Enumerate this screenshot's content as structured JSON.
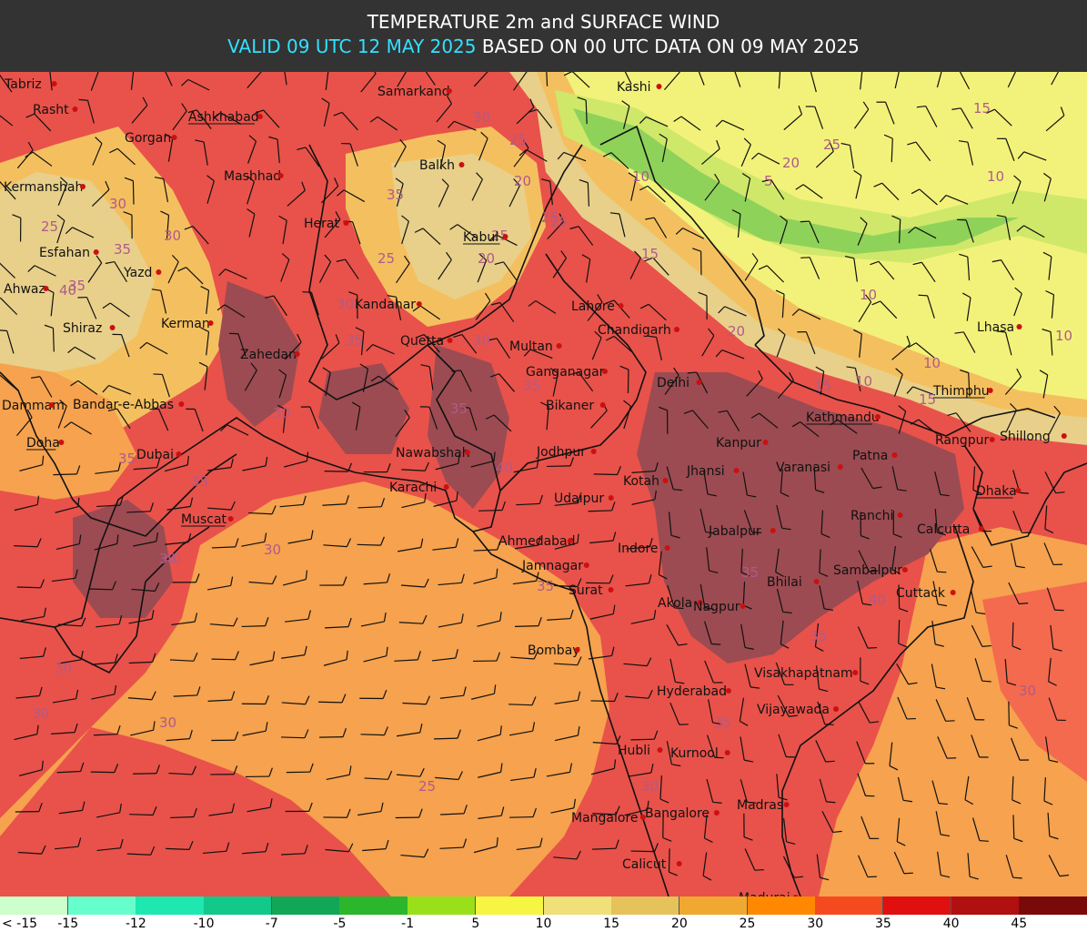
{
  "header": {
    "title": "TEMPERATURE 2m and SURFACE WIND",
    "valid_text": "VALID 09 UTC 12 MAY 2025",
    "based_text": "BASED ON 00 UTC DATA ON 09 MAY 2025"
  },
  "colors": {
    "hot_dark": "#9c4b52",
    "hot": "#e8524a",
    "warm": "#f46a4e",
    "orange": "#f6a24e",
    "light_orange": "#f4c05f",
    "tan": "#e8d08a",
    "yellow": "#f2f27a",
    "green_light": "#cfe86a",
    "green": "#8fd25a",
    "accent_header": "#33e0ff"
  },
  "cities": [
    {
      "name": "Tabriz",
      "underline": false
    },
    {
      "name": "Rasht",
      "underline": false
    },
    {
      "name": "Ashkhabad",
      "underline": true
    },
    {
      "name": "Samarkand",
      "underline": false
    },
    {
      "name": "Kashi",
      "underline": false
    },
    {
      "name": "Gorgan",
      "underline": false
    },
    {
      "name": "Mashhad",
      "underline": false
    },
    {
      "name": "Balkh",
      "underline": false
    },
    {
      "name": "Kermanshah",
      "underline": false
    },
    {
      "name": "Herat",
      "underline": false
    },
    {
      "name": "Kabul",
      "underline": true
    },
    {
      "name": "Esfahan",
      "underline": false
    },
    {
      "name": "Yazd",
      "underline": false
    },
    {
      "name": "Ahwaz",
      "underline": false
    },
    {
      "name": "Kandahar",
      "underline": false
    },
    {
      "name": "Lahore",
      "underline": false
    },
    {
      "name": "Kerman",
      "underline": false
    },
    {
      "name": "Shiraz",
      "underline": false
    },
    {
      "name": "Chandigarh",
      "underline": false
    },
    {
      "name": "Lhasa",
      "underline": false
    },
    {
      "name": "Zahedan",
      "underline": false
    },
    {
      "name": "Quetta",
      "underline": false
    },
    {
      "name": "Multan",
      "underline": false
    },
    {
      "name": "Ganganagar",
      "underline": false
    },
    {
      "name": "Delhi",
      "underline": false
    },
    {
      "name": "Thimphu",
      "underline": true
    },
    {
      "name": "Dammam",
      "underline": false
    },
    {
      "name": "Bandar-e-Abbas",
      "underline": false
    },
    {
      "name": "Bikaner",
      "underline": false
    },
    {
      "name": "Kathmandu",
      "underline": true
    },
    {
      "name": "Doha",
      "underline": true
    },
    {
      "name": "Shillong",
      "underline": false
    },
    {
      "name": "Kanpur",
      "underline": false
    },
    {
      "name": "Rangpur",
      "underline": false
    },
    {
      "name": "Dubai",
      "underline": false
    },
    {
      "name": "Nawabshah",
      "underline": false
    },
    {
      "name": "Jodhpur",
      "underline": false
    },
    {
      "name": "Patna",
      "underline": false
    },
    {
      "name": "Varanasi",
      "underline": false
    },
    {
      "name": "Jhansi",
      "underline": false
    },
    {
      "name": "Kotah",
      "underline": false
    },
    {
      "name": "Karachi",
      "underline": false
    },
    {
      "name": "Dhaka",
      "underline": true
    },
    {
      "name": "Udaipur",
      "underline": false
    },
    {
      "name": "Muscat",
      "underline": true
    },
    {
      "name": "Ranchi",
      "underline": false
    },
    {
      "name": "Calcutta",
      "underline": false
    },
    {
      "name": "Jabalpur",
      "underline": false
    },
    {
      "name": "Ahmedabad",
      "underline": false
    },
    {
      "name": "Indore",
      "underline": false
    },
    {
      "name": "Jamnagar",
      "underline": false
    },
    {
      "name": "Sambalpur",
      "underline": false
    },
    {
      "name": "Bhilai",
      "underline": false
    },
    {
      "name": "Surat",
      "underline": false
    },
    {
      "name": "Cuttack",
      "underline": false
    },
    {
      "name": "Akola",
      "underline": false
    },
    {
      "name": "Nagpur",
      "underline": false
    },
    {
      "name": "Bombay",
      "underline": false
    },
    {
      "name": "Visakhapatnam",
      "underline": false
    },
    {
      "name": "Hyderabad",
      "underline": false
    },
    {
      "name": "Vijayawada",
      "underline": false
    },
    {
      "name": "Hubli",
      "underline": false
    },
    {
      "name": "Kurnool",
      "underline": false
    },
    {
      "name": "Madras",
      "underline": false
    },
    {
      "name": "Mangalore",
      "underline": false
    },
    {
      "name": "Bangalore",
      "underline": false
    },
    {
      "name": "Calicut",
      "underline": false
    },
    {
      "name": "Madurai",
      "underline": false
    }
  ],
  "contour_labels": [
    "30",
    "25",
    "30",
    "35",
    "35",
    "25",
    "25",
    "35",
    "30",
    "35",
    "30",
    "30",
    "25",
    "20",
    "25",
    "20",
    "15",
    "10",
    "20",
    "25",
    "10",
    "15",
    "5",
    "10",
    "20",
    "25",
    "30",
    "35",
    "40",
    "35",
    "40",
    "35",
    "35",
    "30",
    "30",
    "40",
    "35",
    "30",
    "35",
    "40",
    "35",
    "30",
    "30",
    "25",
    "15",
    "10",
    "10",
    "15",
    "10",
    "30",
    "30",
    "35"
  ],
  "legend": [
    {
      "label": "< -15",
      "color": "#ccffcc"
    },
    {
      "label": "-15",
      "color": "#66ffcc"
    },
    {
      "label": "-12",
      "color": "#1de8b0"
    },
    {
      "label": "-10",
      "color": "#12c989"
    },
    {
      "label": "-7",
      "color": "#12a657"
    },
    {
      "label": "-5",
      "color": "#2bb62b"
    },
    {
      "label": "-1",
      "color": "#99e01a"
    },
    {
      "label": "5",
      "color": "#f5f542"
    },
    {
      "label": "10",
      "color": "#efe07a"
    },
    {
      "label": "15",
      "color": "#e6c25a"
    },
    {
      "label": "20",
      "color": "#f0a830"
    },
    {
      "label": "25",
      "color": "#ff8800"
    },
    {
      "label": "30",
      "color": "#f54a20"
    },
    {
      "label": "35",
      "color": "#e01010"
    },
    {
      "label": "40",
      "color": "#b01010"
    },
    {
      "label": "45",
      "color": "#7a0a0a"
    }
  ]
}
